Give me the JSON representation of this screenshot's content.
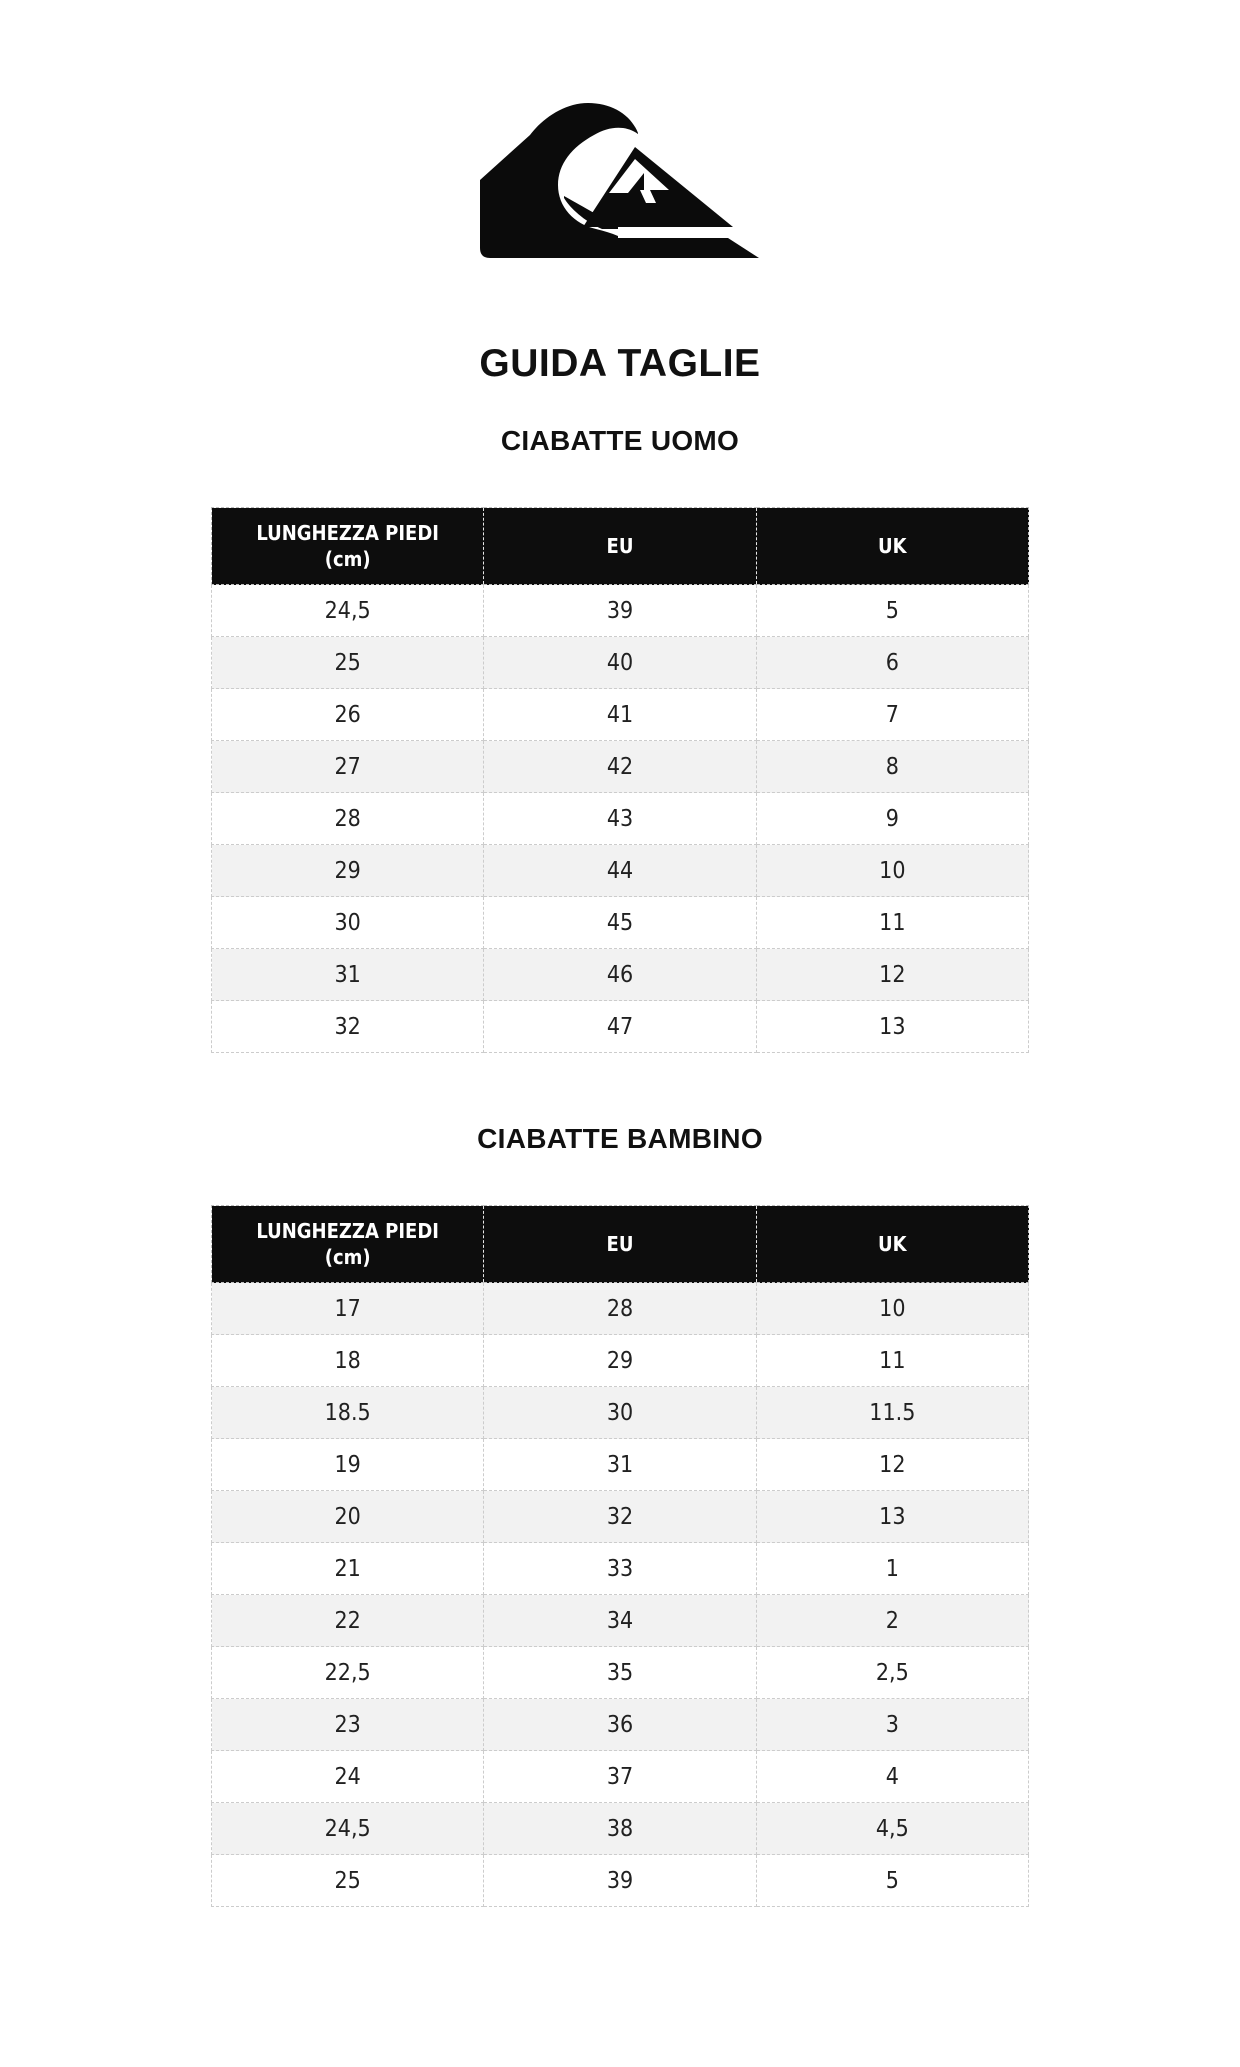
{
  "page_title": "GUIDA TAGLIE",
  "logo": {
    "icon": "quiksilver-wave-mountain-logo",
    "color": "#0b0b0b"
  },
  "colors": {
    "header_bg": "#0d0d0d",
    "header_text": "#ffffff",
    "row_alt_bg": "#f2f2f2",
    "border_dashed": "#cccccc",
    "text": "#212121"
  },
  "sections": [
    {
      "title": "CIABATTE UOMO",
      "columns": {
        "c1_line1": "LUNGHEZZA PIEDI",
        "c1_line2": "(cm)",
        "c2": "EU",
        "c3": "UK"
      },
      "first_row_shaded": false,
      "rows": [
        [
          "24,5",
          "39",
          "5"
        ],
        [
          "25",
          "40",
          "6"
        ],
        [
          "26",
          "41",
          "7"
        ],
        [
          "27",
          "42",
          "8"
        ],
        [
          "28",
          "43",
          "9"
        ],
        [
          "29",
          "44",
          "10"
        ],
        [
          "30",
          "45",
          "11"
        ],
        [
          "31",
          "46",
          "12"
        ],
        [
          "32",
          "47",
          "13"
        ]
      ]
    },
    {
      "title": "CIABATTE BAMBINO",
      "columns": {
        "c1_line1": "LUNGHEZZA PIEDI",
        "c1_line2": "(cm)",
        "c2": "EU",
        "c3": "UK"
      },
      "first_row_shaded": true,
      "rows": [
        [
          "17",
          "28",
          "10"
        ],
        [
          "18",
          "29",
          "11"
        ],
        [
          "18.5",
          "30",
          "11.5"
        ],
        [
          "19",
          "31",
          "12"
        ],
        [
          "20",
          "32",
          "13"
        ],
        [
          "21",
          "33",
          "1"
        ],
        [
          "22",
          "34",
          "2"
        ],
        [
          "22,5",
          "35",
          "2,5"
        ],
        [
          "23",
          "36",
          "3"
        ],
        [
          "24",
          "37",
          "4"
        ],
        [
          "24,5",
          "38",
          "4,5"
        ],
        [
          "25",
          "39",
          "5"
        ]
      ]
    }
  ]
}
